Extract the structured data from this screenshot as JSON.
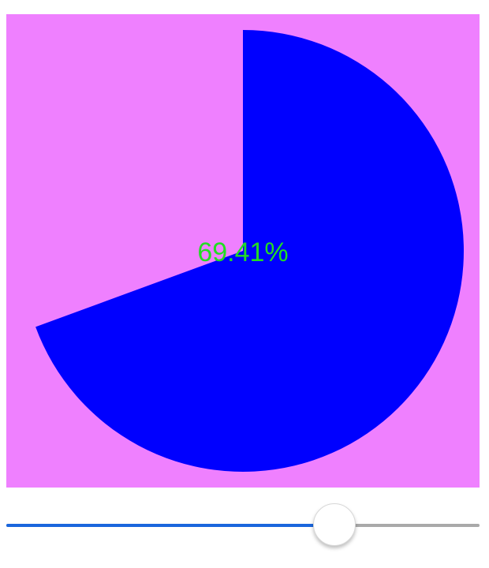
{
  "progress_chart": {
    "label": "69.41%",
    "value_fraction": 0.6941,
    "colors": {
      "panel_background": "#ef80ff",
      "filled_arc": "#0000ff",
      "label_text": "#22dd22"
    }
  },
  "slider": {
    "value_fraction": 0.6941,
    "colors": {
      "active_track": "#1a66dd",
      "inactive_track": "#a9a9a9",
      "thumb": "#ffffff"
    }
  }
}
